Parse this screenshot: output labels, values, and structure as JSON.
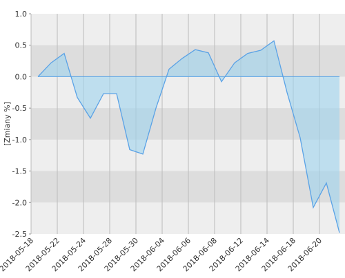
{
  "chart_data": {
    "type": "area",
    "y_label": "[Zmiany %]",
    "xtick_labels": [
      "2018-05-18",
      "2018-05-22",
      "2018-05-24",
      "2018-05-28",
      "2018-05-30",
      "2018-06-04",
      "2018-06-06",
      "2018-06-08",
      "2018-06-12",
      "2018-06-14",
      "2018-06-18",
      "2018-06-20"
    ],
    "values": [
      0.0,
      0.22,
      0.37,
      -0.33,
      -0.66,
      -0.27,
      -0.27,
      -1.16,
      -1.23,
      -0.5,
      0.12,
      0.29,
      0.43,
      0.38,
      -0.08,
      0.22,
      0.37,
      0.42,
      0.57,
      -0.25,
      -0.97,
      -2.08,
      -1.69,
      -2.48
    ],
    "color": "#5aa2e6",
    "ylim": [
      -2.5,
      1.0
    ],
    "yticks": [
      {
        "value": -2.5,
        "label": "-2.5"
      },
      {
        "value": -2.0,
        "label": "-2.0"
      },
      {
        "value": -1.5,
        "label": "-1.5"
      },
      {
        "value": -1.0,
        "label": "-1.0"
      },
      {
        "value": -0.5,
        "label": "-0.5"
      },
      {
        "value": 0.0,
        "label": "0.0"
      },
      {
        "value": 0.5,
        "label": "0.5"
      },
      {
        "value": 1.0,
        "label": "1.0"
      }
    ],
    "grid": true
  }
}
